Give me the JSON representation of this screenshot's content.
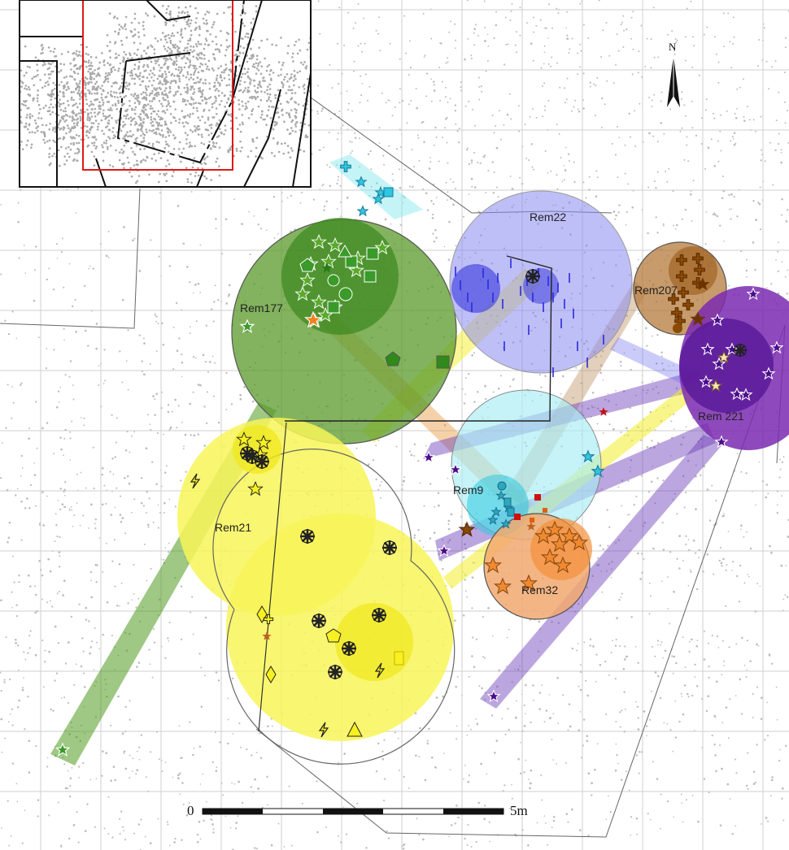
{
  "map": {
    "north_label": "N",
    "scale": {
      "start_label": "0",
      "end_label": "5m"
    },
    "clusters": [
      {
        "id": "rem177",
        "label": "Rem177",
        "color": "#2e8b1f"
      },
      {
        "id": "rem22",
        "label": "Rem22",
        "color": "#4040d8"
      },
      {
        "id": "rem207",
        "label": "Rem207",
        "color": "#8a4a00"
      },
      {
        "id": "rem221",
        "label": "Rem 221",
        "color": "#5a1a9a"
      },
      {
        "id": "rem21",
        "label": "Rem21",
        "color": "#f5f010"
      },
      {
        "id": "rem9",
        "label": "Rem9",
        "color": "#30c8e0"
      },
      {
        "id": "rem32",
        "label": "Rem32",
        "color": "#f08020"
      }
    ],
    "colors": {
      "green": "#3a9a2a",
      "blue": "#3a3ad0",
      "brown": "#7a3e00",
      "purple": "#5a1a9a",
      "yellow": "#f2ee18",
      "cyan": "#2ec6e0",
      "orange": "#f07a1a",
      "red": "#d01010",
      "dots": "#bdbdbd"
    },
    "inset": {
      "highlight_color": "#e01818"
    }
  }
}
